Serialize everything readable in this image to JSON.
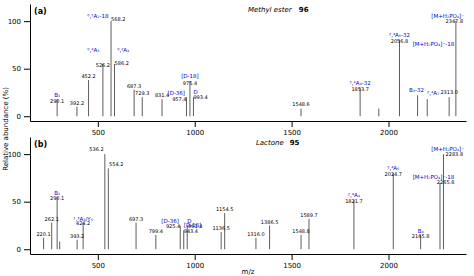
{
  "chart_data": [
    {
      "type": "stem",
      "title": "Methyl ester",
      "panel_label": "(a)",
      "structure_label": "96",
      "ylabel": "Relative abundance (%)",
      "color": "#333333",
      "x": [
        290.1,
        392.2,
        452.2,
        526.2,
        568.2,
        586.2,
        687.3,
        729.3,
        831.4,
        957.4,
        975.4,
        993.4,
        1548.6,
        1853.7,
        1950,
        2056.8,
        2150,
        2200,
        2313.0,
        2347.8
      ],
      "values": [
        18,
        10,
        38,
        55,
        100,
        55,
        28,
        20,
        18,
        20,
        37,
        20,
        8,
        30,
        8,
        80,
        22,
        18,
        20,
        100
      ],
      "xlim": [
        150,
        2400
      ],
      "xticks": [
        500,
        1000,
        1500,
        2000
      ],
      "ylim": [
        -5,
        118
      ],
      "yticks": [
        0,
        50,
        100
      ],
      "annotations": [
        {
          "text": "B₁",
          "x": 290.1,
          "y": 20,
          "color": "#0000cc",
          "align": "middle"
        },
        {
          "text": "290.1",
          "x": 290.1,
          "y": 14,
          "color": "#000000",
          "align": "middle"
        },
        {
          "text": "392.2",
          "x": 392.2,
          "y": 12,
          "color": "#000000",
          "align": "middle"
        },
        {
          "text": "452.2",
          "x": 452.2,
          "y": 40,
          "color": "#000000",
          "align": "middle"
        },
        {
          "text": "⁰,⁴A₃",
          "x": 508,
          "y": 68,
          "color": "#0000cc",
          "align": "end"
        },
        {
          "text": "526.2",
          "x": 526.2,
          "y": 52,
          "color": "#000000",
          "align": "middle"
        },
        {
          "text": "⁰,²A₂-18",
          "x": 555,
          "y": 103,
          "color": "#0000cc",
          "align": "end"
        },
        {
          "text": "568.2",
          "x": 568.2,
          "y": 100,
          "color": "#000000",
          "align": "start"
        },
        {
          "text": "⁰,²A₃",
          "x": 600,
          "y": 68,
          "color": "#0000cc",
          "align": "start"
        },
        {
          "text": "586.2",
          "x": 586.2,
          "y": 54,
          "color": "#000000",
          "align": "start"
        },
        {
          "text": "687.3",
          "x": 687.3,
          "y": 30,
          "color": "#000000",
          "align": "middle"
        },
        {
          "text": "729.3",
          "x": 729.3,
          "y": 22,
          "color": "#000000",
          "align": "middle"
        },
        {
          "text": "831.4",
          "x": 831.4,
          "y": 20,
          "color": "#000000",
          "align": "middle"
        },
        {
          "text": "[D-36]",
          "x": 950,
          "y": 22,
          "color": "#0000cc",
          "align": "end"
        },
        {
          "text": "957.4",
          "x": 957.4,
          "y": 16,
          "color": "#000000",
          "align": "end"
        },
        {
          "text": "[D-18]",
          "x": 975.4,
          "y": 40,
          "color": "#0000cc",
          "align": "middle"
        },
        {
          "text": "975.4",
          "x": 975.4,
          "y": 33,
          "color": "#000000",
          "align": "middle"
        },
        {
          "text": "D",
          "x": 993.4,
          "y": 23,
          "color": "#0000cc",
          "align": "start"
        },
        {
          "text": "993.4",
          "x": 993.4,
          "y": 18,
          "color": "#000000",
          "align": "start"
        },
        {
          "text": "1548.6",
          "x": 1548.6,
          "y": 11,
          "color": "#000000",
          "align": "middle"
        },
        {
          "text": "²,⁴A₄-32",
          "x": 1853.7,
          "y": 33,
          "color": "#0000cc",
          "align": "middle"
        },
        {
          "text": "1853.7",
          "x": 1853.7,
          "y": 27,
          "color": "#000000",
          "align": "middle"
        },
        {
          "text": "B₃-32",
          "x": 2145,
          "y": 25,
          "color": "#0000cc",
          "align": "middle"
        },
        {
          "text": "²,⁴A₅-32",
          "x": 2056.8,
          "y": 83,
          "color": "#0000cc",
          "align": "middle"
        },
        {
          "text": "2056.8",
          "x": 2056.8,
          "y": 77,
          "color": "#000000",
          "align": "middle"
        },
        {
          "text": "²,⁴A₇",
          "x": 2230,
          "y": 22,
          "color": "#0000cc",
          "align": "middle"
        },
        {
          "text": "2313.0",
          "x": 2313.0,
          "y": 23,
          "color": "#000000",
          "align": "middle"
        },
        {
          "text": "[M+H₂PO₄]⁻",
          "x": 2390,
          "y": 103,
          "color": "#0000cc",
          "align": "end"
        },
        {
          "text": "2347.8",
          "x": 2385,
          "y": 98,
          "color": "#000000",
          "align": "end"
        },
        {
          "text": "[M+H₂PO₄]⁻-18",
          "x": 2340,
          "y": 74,
          "color": "#0000cc",
          "align": "end"
        }
      ]
    },
    {
      "type": "stem",
      "title": "Lactone",
      "panel_label": "(b)",
      "structure_label": "95",
      "xlabel": "m/z",
      "color": "#333333",
      "x": [
        220.1,
        262.1,
        290.1,
        303.2,
        393.2,
        424.2,
        536.2,
        554.2,
        697.3,
        799.4,
        925.4,
        943.4,
        961.4,
        1136.5,
        1154.5,
        1316.0,
        1386.5,
        1548.8,
        1589.7,
        1821.7,
        2024.7,
        2165.8,
        2265.8,
        2283.8
      ],
      "values": [
        12,
        28,
        55,
        8,
        10,
        28,
        100,
        85,
        28,
        15,
        25,
        20,
        25,
        18,
        38,
        12,
        25,
        15,
        32,
        52,
        80,
        15,
        70,
        100
      ],
      "xlim": [
        150,
        2400
      ],
      "xticks": [
        500,
        1000,
        1500,
        2000
      ],
      "ylim": [
        -5,
        118
      ],
      "yticks": [
        0,
        50,
        100
      ],
      "annotations": [
        {
          "text": "220.1",
          "x": 220.1,
          "y": 14,
          "color": "#000000",
          "align": "middle"
        },
        {
          "text": "262.1",
          "x": 262.1,
          "y": 30,
          "color": "#000000",
          "align": "middle"
        },
        {
          "text": "B₁",
          "x": 290.1,
          "y": 57,
          "color": "#0000cc",
          "align": "middle"
        },
        {
          "text": "290.1",
          "x": 290.1,
          "y": 52,
          "color": "#000000",
          "align": "middle"
        },
        {
          "text": "393.2",
          "x": 393.2,
          "y": 12,
          "color": "#000000",
          "align": "middle"
        },
        {
          "text": "¹,³A₃/Y₅",
          "x": 424.2,
          "y": 30,
          "color": "#0000cc",
          "align": "middle"
        },
        {
          "text": "424.2",
          "x": 424.2,
          "y": 26,
          "color": "#000000",
          "align": "middle"
        },
        {
          "text": "536.2",
          "x": 530,
          "y": 103,
          "color": "#000000",
          "align": "end"
        },
        {
          "text": "554.2",
          "x": 558,
          "y": 88,
          "color": "#000000",
          "align": "start"
        },
        {
          "text": "697.3",
          "x": 697.3,
          "y": 30,
          "color": "#000000",
          "align": "middle"
        },
        {
          "text": "799.4",
          "x": 799.4,
          "y": 17,
          "color": "#000000",
          "align": "middle"
        },
        {
          "text": "[D-36]",
          "x": 918,
          "y": 28,
          "color": "#0000cc",
          "align": "end"
        },
        {
          "text": "925.4",
          "x": 925.4,
          "y": 22,
          "color": "#000000",
          "align": "end"
        },
        {
          "text": "[D-18]",
          "x": 943.4,
          "y": 23,
          "color": "#0000cc",
          "align": "start"
        },
        {
          "text": "943.4",
          "x": 943.4,
          "y": 17,
          "color": "#000000",
          "align": "start"
        },
        {
          "text": "D",
          "x": 961.4,
          "y": 28,
          "color": "#0000cc",
          "align": "start"
        },
        {
          "text": "961.4",
          "x": 966,
          "y": 22,
          "color": "#000000",
          "align": "start"
        },
        {
          "text": "1136.5",
          "x": 1136.5,
          "y": 20,
          "color": "#000000",
          "align": "middle"
        },
        {
          "text": "1154.5",
          "x": 1154.5,
          "y": 40,
          "color": "#000000",
          "align": "middle"
        },
        {
          "text": "1316.0",
          "x": 1316.0,
          "y": 14,
          "color": "#000000",
          "align": "middle"
        },
        {
          "text": "1386.5",
          "x": 1386.5,
          "y": 27,
          "color": "#000000",
          "align": "middle"
        },
        {
          "text": "1548.8",
          "x": 1548.8,
          "y": 17,
          "color": "#000000",
          "align": "middle"
        },
        {
          "text": "1589.7",
          "x": 1589.7,
          "y": 34,
          "color": "#000000",
          "align": "middle"
        },
        {
          "text": "²,⁴A₄",
          "x": 1821.7,
          "y": 55,
          "color": "#0000cc",
          "align": "middle"
        },
        {
          "text": "1821.7",
          "x": 1821.7,
          "y": 49,
          "color": "#000000",
          "align": "middle"
        },
        {
          "text": "²,⁴A₅",
          "x": 2024.7,
          "y": 83,
          "color": "#0000cc",
          "align": "middle"
        },
        {
          "text": "2024.7",
          "x": 2024.7,
          "y": 77,
          "color": "#000000",
          "align": "middle"
        },
        {
          "text": "B₄",
          "x": 2165.8,
          "y": 17,
          "color": "#0000cc",
          "align": "middle"
        },
        {
          "text": "2165.8",
          "x": 2165.8,
          "y": 12,
          "color": "#000000",
          "align": "middle"
        },
        {
          "text": "[M+H₂PO₄]⁻",
          "x": 2390,
          "y": 103,
          "color": "#0000cc",
          "align": "end"
        },
        {
          "text": "2283.8",
          "x": 2385,
          "y": 98,
          "color": "#000000",
          "align": "end"
        },
        {
          "text": "[M+H₂PO₄]⁻-18",
          "x": 2340,
          "y": 74,
          "color": "#0000cc",
          "align": "end"
        },
        {
          "text": "2265.8",
          "x": 2340,
          "y": 69,
          "color": "#000000",
          "align": "end"
        }
      ]
    }
  ]
}
